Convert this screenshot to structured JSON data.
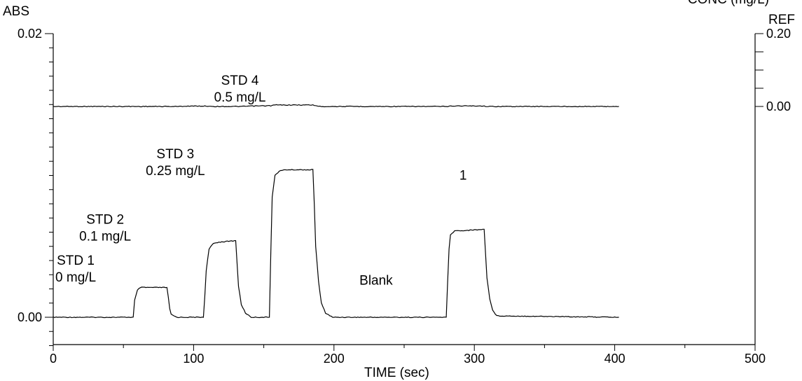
{
  "chart_data": {
    "type": "line",
    "title": "",
    "xlabel": "TIME (sec)",
    "xlim": [
      0,
      500
    ],
    "x_ticks": [
      0,
      100,
      200,
      300,
      400,
      500
    ],
    "x_tick_labels": [
      "0",
      "100",
      "200",
      "300",
      "400",
      "500"
    ],
    "left_axis": {
      "label": "ABS",
      "ylim": [
        -0.0021,
        0.02
      ],
      "tick_labels": [
        {
          "value": 0.02,
          "text": "0.02"
        },
        {
          "value": 0.0,
          "text": "0.00"
        }
      ]
    },
    "right_axis": {
      "label": "REF",
      "top_label": "CONC (mg/L)",
      "tick_labels": [
        {
          "value": 0.2,
          "text": "0.20"
        },
        {
          "value": 0.0,
          "text": "0.00"
        }
      ]
    },
    "series": [
      {
        "axis": "left",
        "x": [
          0,
          57,
          58,
          60,
          62,
          66,
          81,
          82,
          83,
          84,
          86,
          88,
          107,
          108,
          109,
          111,
          114,
          118,
          130,
          131,
          132,
          134,
          137,
          141,
          154,
          155,
          156,
          158,
          161,
          165,
          185,
          186,
          187,
          189,
          191,
          194,
          199,
          280,
          281,
          282,
          283,
          286,
          290,
          307,
          308,
          309,
          311,
          313,
          316,
          403
        ],
        "y": [
          0.0,
          0.0,
          0.0012,
          0.0019,
          0.0021,
          0.0021,
          0.0021,
          0.0014,
          0.0006,
          0.0002,
          0.0001,
          0.0,
          0.0,
          0.0015,
          0.0033,
          0.0048,
          0.0052,
          0.0053,
          0.0054,
          0.0038,
          0.0022,
          0.0009,
          0.0003,
          0.0,
          0.0,
          0.0045,
          0.0085,
          0.01,
          0.0103,
          0.0104,
          0.0104,
          0.008,
          0.005,
          0.0025,
          0.001,
          0.0003,
          0.0,
          0.0,
          0.0025,
          0.0048,
          0.0058,
          0.0061,
          0.0061,
          0.0062,
          0.0045,
          0.0028,
          0.0013,
          0.0005,
          0.0001,
          0.0
        ]
      },
      {
        "axis": "right",
        "x": [
          0,
          90,
          95,
          110,
          115,
          135,
          140,
          155,
          158,
          185,
          190,
          200,
          220,
          280,
          285,
          305,
          310,
          330,
          335,
          403
        ],
        "y": [
          0.0,
          0.0,
          0.001,
          0.001,
          0.0,
          0.0,
          0.001,
          0.002,
          0.004,
          0.004,
          0.0,
          0.0,
          0.0,
          0.0,
          0.0015,
          0.0015,
          0.0,
          0.0,
          0.0,
          0.0
        ]
      }
    ],
    "annotations": [
      {
        "lines": [
          "STD 1",
          "0 mg/L"
        ],
        "x": 16,
        "y": 0.0037
      },
      {
        "lines": [
          "STD 2",
          "0.1 mg/L"
        ],
        "x": 37,
        "y": 0.0066
      },
      {
        "lines": [
          "STD 3",
          "0.25 mg/L"
        ],
        "x": 87,
        "y": 0.0112
      },
      {
        "lines": [
          "STD 4",
          "0.5 mg/L"
        ],
        "x": 133,
        "y": 0.0164
      },
      {
        "lines": [
          "Blank"
        ],
        "x": 230,
        "y": 0.0023
      },
      {
        "lines": [
          "1"
        ],
        "x": 292,
        "y": 0.0097
      }
    ]
  }
}
